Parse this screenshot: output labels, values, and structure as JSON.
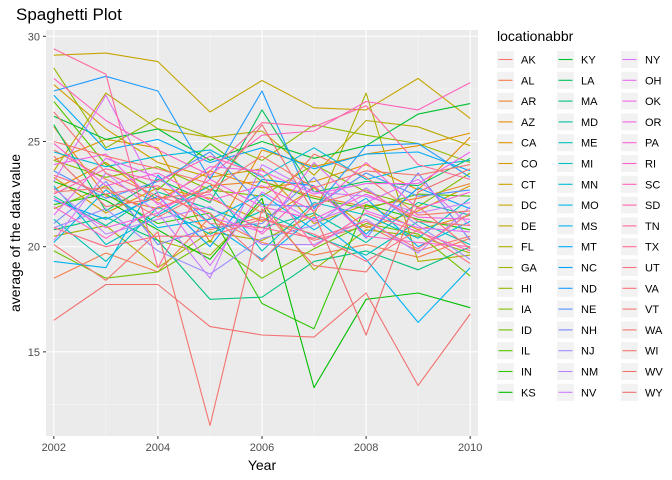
{
  "chart_data": {
    "type": "line",
    "title": "Spaghetti Plot",
    "xlabel": "Year",
    "ylabel": "average of the data value",
    "xlim": [
      2001.85,
      2010.15
    ],
    "ylim": [
      11.0,
      30.3
    ],
    "x_ticks": [
      2002,
      2004,
      2006,
      2008,
      2010
    ],
    "y_ticks": [
      15,
      20,
      25,
      30
    ],
    "grid": true,
    "legend": {
      "title": "locationabbr",
      "placement": "right",
      "columns": 3
    },
    "background_color": "#EBEBEB",
    "x": [
      2002,
      2003,
      2004,
      2005,
      2006,
      2007,
      2008,
      2009,
      2010
    ],
    "series": [
      {
        "name": "AK",
        "color": "#F8766D",
        "values": [
          24.6,
          23.2,
          22.1,
          20.8,
          21.4,
          20.3,
          21.0,
          19.8,
          20.5
        ]
      },
      {
        "name": "AL",
        "color": "#F47D4E",
        "values": [
          18.5,
          19.7,
          18.8,
          21.4,
          20.2,
          19.6,
          20.1,
          19.5,
          20.4
        ]
      },
      {
        "name": "AR",
        "color": "#EF8429",
        "values": [
          25.7,
          22.4,
          21.8,
          22.9,
          23.1,
          22.4,
          21.9,
          22.3,
          23.0
        ]
      },
      {
        "name": "AZ",
        "color": "#E88B00",
        "values": [
          22.7,
          24.0,
          22.2,
          23.6,
          22.8,
          23.1,
          23.9,
          22.7,
          25.2
        ]
      },
      {
        "name": "CA",
        "color": "#E09200",
        "values": [
          24.1,
          25.1,
          24.7,
          20.2,
          24.6,
          23.8,
          24.4,
          24.8,
          25.4
        ]
      },
      {
        "name": "CO",
        "color": "#D89900",
        "values": [
          23.3,
          21.6,
          22.8,
          22.3,
          21.2,
          22.8,
          20.9,
          21.7,
          22.9
        ]
      },
      {
        "name": "CT",
        "color": "#CF9F00",
        "values": [
          27.7,
          25.6,
          24.0,
          23.3,
          23.7,
          21.1,
          22.0,
          20.8,
          21.5
        ]
      },
      {
        "name": "DC",
        "color": "#C5A500",
        "values": [
          29.1,
          29.2,
          28.8,
          26.4,
          27.9,
          26.6,
          26.5,
          28.0,
          26.1
        ]
      },
      {
        "name": "DE",
        "color": "#BAAA00",
        "values": [
          23.6,
          27.3,
          25.6,
          25.2,
          25.5,
          23.4,
          26.0,
          25.7,
          24.8
        ]
      },
      {
        "name": "FL",
        "color": "#AEAF00",
        "values": [
          20.5,
          21.0,
          19.0,
          20.7,
          20.3,
          21.5,
          27.3,
          19.3,
          19.6
        ]
      },
      {
        "name": "GA",
        "color": "#A1B400",
        "values": [
          21.8,
          22.9,
          20.3,
          19.6,
          22.1,
          18.9,
          20.8,
          20.5,
          19.7
        ]
      },
      {
        "name": "HI",
        "color": "#93B900",
        "values": [
          28.5,
          24.7,
          26.1,
          25.2,
          24.1,
          25.8,
          25.3,
          24.9,
          24.0
        ]
      },
      {
        "name": "IA",
        "color": "#83BD00",
        "values": [
          24.1,
          23.3,
          23.8,
          22.7,
          22.4,
          23.9,
          22.6,
          21.9,
          23.5
        ]
      },
      {
        "name": "ID",
        "color": "#6FC100",
        "values": [
          19.8,
          18.5,
          18.8,
          20.3,
          18.5,
          19.9,
          21.1,
          20.6,
          18.6
        ]
      },
      {
        "name": "IL",
        "color": "#56C500",
        "values": [
          26.9,
          23.9,
          22.7,
          24.9,
          23.1,
          22.3,
          21.8,
          22.5,
          22.4
        ]
      },
      {
        "name": "IN",
        "color": "#2EC800",
        "values": [
          22.0,
          22.5,
          21.1,
          21.6,
          17.3,
          16.1,
          22.0,
          21.3,
          20.8
        ]
      },
      {
        "name": "KS",
        "color": "#00BE00",
        "values": [
          23.1,
          22.2,
          20.8,
          19.4,
          22.3,
          13.3,
          17.5,
          17.8,
          17.1
        ]
      },
      {
        "name": "KY",
        "color": "#00C032",
        "values": [
          26.2,
          25.1,
          25.6,
          24.1,
          25.0,
          24.2,
          24.8,
          26.3,
          26.8
        ]
      },
      {
        "name": "LA",
        "color": "#00C15A",
        "values": [
          25.8,
          21.7,
          23.2,
          22.1,
          26.5,
          22.6,
          23.1,
          22.9,
          24.2
        ]
      },
      {
        "name": "MA",
        "color": "#00C27D",
        "values": [
          20.8,
          21.4,
          20.3,
          17.5,
          17.6,
          19.3,
          19.8,
          18.9,
          20.0
        ]
      },
      {
        "name": "MD",
        "color": "#00C19F",
        "values": [
          22.4,
          21.0,
          22.6,
          21.8,
          20.9,
          21.6,
          20.2,
          22.1,
          21.5
        ]
      },
      {
        "name": "ME",
        "color": "#00C0B9",
        "values": [
          21.3,
          19.3,
          21.9,
          20.6,
          21.7,
          20.5,
          19.6,
          21.2,
          20.1
        ]
      },
      {
        "name": "MI",
        "color": "#00BFC4",
        "values": [
          22.9,
          20.1,
          21.5,
          22.9,
          19.8,
          22.1,
          21.5,
          20.4,
          22.3
        ]
      },
      {
        "name": "MN",
        "color": "#00BCD6",
        "values": [
          24.5,
          23.8,
          24.3,
          24.6,
          23.3,
          24.7,
          23.2,
          23.8,
          24.1
        ]
      },
      {
        "name": "MO",
        "color": "#00B8E5",
        "values": [
          20.2,
          22.7,
          20.9,
          21.3,
          22.5,
          20.8,
          22.3,
          20.0,
          21.2
        ]
      },
      {
        "name": "MS",
        "color": "#00B3F2",
        "values": [
          19.3,
          19.0,
          23.4,
          21.1,
          19.4,
          21.4,
          19.4,
          16.4,
          19.0
        ]
      },
      {
        "name": "MT",
        "color": "#00AAFB",
        "values": [
          27.2,
          24.6,
          25.1,
          24.0,
          24.7,
          23.7,
          24.4,
          24.5,
          23.6
        ]
      },
      {
        "name": "NC",
        "color": "#00A2FF",
        "values": [
          22.2,
          21.3,
          22.4,
          20.0,
          23.2,
          22.9,
          20.6,
          22.8,
          21.8
        ]
      },
      {
        "name": "ND",
        "color": "#1C9AFF",
        "values": [
          27.4,
          28.1,
          27.4,
          23.2,
          27.4,
          21.8,
          24.8,
          24.9,
          23.3
        ]
      },
      {
        "name": "NE",
        "color": "#4E91FF",
        "values": [
          23.6,
          22.3,
          23.1,
          24.5,
          22.0,
          21.9,
          23.5,
          22.4,
          22.7
        ]
      },
      {
        "name": "NH",
        "color": "#7386FF",
        "values": [
          21.1,
          23.1,
          20.1,
          20.9,
          21.1,
          23.3,
          20.4,
          23.5,
          20.3
        ]
      },
      {
        "name": "NJ",
        "color": "#9F8CFF",
        "values": [
          20.9,
          21.8,
          19.8,
          18.7,
          20.4,
          21.0,
          22.8,
          21.0,
          19.4
        ]
      },
      {
        "name": "NM",
        "color": "#B883FF",
        "values": [
          22.8,
          20.6,
          21.3,
          21.9,
          20.1,
          20.1,
          21.3,
          19.7,
          21.9
        ]
      },
      {
        "name": "NV",
        "color": "#CC7BFF",
        "values": [
          20.3,
          23.5,
          21.6,
          18.5,
          23.9,
          22.6,
          22.4,
          21.6,
          22.1
        ]
      },
      {
        "name": "NY",
        "color": "#DC71FA",
        "values": [
          23.1,
          27.2,
          22.5,
          19.1,
          22.6,
          21.2,
          22.1,
          23.2,
          21.0
        ]
      },
      {
        "name": "OH",
        "color": "#E76BF3",
        "values": [
          21.5,
          24.2,
          23.3,
          21.4,
          20.7,
          24.0,
          21.7,
          20.9,
          20.7
        ]
      },
      {
        "name": "OK",
        "color": "#F066EA",
        "values": [
          23.9,
          24.4,
          22.0,
          23.8,
          23.6,
          22.5,
          23.0,
          23.0,
          24.5
        ]
      },
      {
        "name": "OR",
        "color": "#F763E0",
        "values": [
          22.3,
          20.9,
          21.6,
          23.2,
          21.9,
          21.3,
          22.5,
          21.4,
          21.3
        ]
      },
      {
        "name": "PA",
        "color": "#FC61D5",
        "values": [
          24.9,
          22.9,
          23.5,
          22.2,
          22.9,
          21.7,
          24.0,
          21.8,
          22.6
        ]
      },
      {
        "name": "RI",
        "color": "#FF61C9",
        "values": [
          21.9,
          20.4,
          21.9,
          22.5,
          20.6,
          22.9,
          20.5,
          20.2,
          20.0
        ]
      },
      {
        "name": "SC",
        "color": "#FF62BC",
        "values": [
          28.0,
          26.0,
          24.6,
          23.4,
          25.3,
          25.5,
          26.9,
          26.5,
          27.8
        ]
      },
      {
        "name": "SD",
        "color": "#FF64AE",
        "values": [
          22.5,
          23.7,
          23.1,
          24.3,
          23.4,
          20.0,
          21.6,
          20.7,
          19.8
        ]
      },
      {
        "name": "TN",
        "color": "#FF689F",
        "values": [
          29.4,
          28.2,
          19.0,
          23.6,
          25.9,
          25.7,
          26.7,
          23.9,
          23.2
        ]
      },
      {
        "name": "TX",
        "color": "#FF6C91",
        "values": [
          23.4,
          22.5,
          22.9,
          21.1,
          20.9,
          20.4,
          21.2,
          19.9,
          21.6
        ]
      },
      {
        "name": "UT",
        "color": "#FD6F84",
        "values": [
          20.9,
          20.0,
          20.5,
          20.5,
          21.3,
          20.6,
          19.3,
          20.8,
          19.2
        ]
      },
      {
        "name": "VA",
        "color": "#F9727A",
        "values": [
          26.4,
          23.5,
          22.4,
          21.6,
          19.3,
          22.0,
          22.7,
          21.2,
          21.0
        ]
      },
      {
        "name": "VT",
        "color": "#F57671",
        "values": [
          22.6,
          22.8,
          21.4,
          22.7,
          24.3,
          22.8,
          23.6,
          23.4,
          23.9
        ]
      },
      {
        "name": "WA",
        "color": "#F8766D",
        "values": [
          25.0,
          24.3,
          23.7,
          23.0,
          21.6,
          24.4,
          23.3,
          21.5,
          21.7
        ]
      },
      {
        "name": "WI",
        "color": "#F5736E",
        "values": [
          20.1,
          18.4,
          20.7,
          11.5,
          21.8,
          19.1,
          18.8,
          21.9,
          19.9
        ]
      },
      {
        "name": "WV",
        "color": "#F2716F",
        "values": [
          16.5,
          18.2,
          18.2,
          16.2,
          15.8,
          15.7,
          17.8,
          13.4,
          16.8
        ]
      },
      {
        "name": "WY",
        "color": "#EF6F70",
        "values": [
          24.3,
          21.9,
          22.3,
          22.6,
          25.8,
          21.6,
          15.8,
          22.6,
          23.7
        ]
      }
    ]
  }
}
